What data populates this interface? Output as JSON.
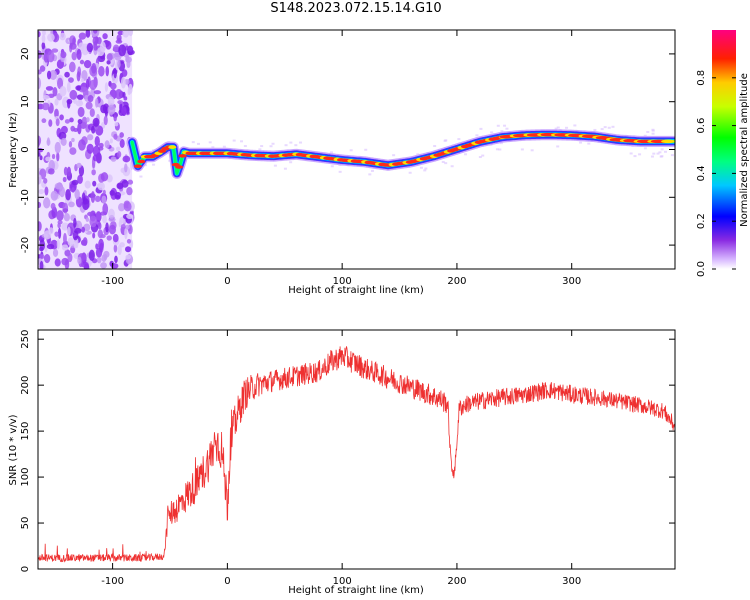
{
  "title": "S148.2023.072.15.14.G10",
  "colors": {
    "snr_line": "#ee3030",
    "colormap": [
      "#ffffff",
      "#8a2be2",
      "#0000ff",
      "#00ffff",
      "#00ff00",
      "#ffff00",
      "#ff0000",
      "#ff00aa"
    ]
  },
  "chart_data": [
    {
      "type": "heatmap",
      "title": "S148.2023.072.15.14.G10",
      "xlabel": "Height of straight line (km)",
      "ylabel": "Frequency (Hz)",
      "xlim": [
        -165,
        390
      ],
      "ylim": [
        -25,
        25
      ],
      "x_ticks": [
        -100,
        0,
        100,
        200,
        300
      ],
      "y_ticks": [
        -20,
        -10,
        0,
        10,
        20
      ],
      "noise_region_x": [
        -165,
        -83
      ],
      "ridge": {
        "x": [
          -83,
          -78,
          -72,
          -65,
          -58,
          -52,
          -47,
          -44,
          -41,
          -38,
          -33,
          -25,
          -10,
          0,
          20,
          40,
          60,
          80,
          100,
          120,
          140,
          160,
          180,
          200,
          220,
          240,
          260,
          280,
          300,
          320,
          340,
          360,
          390
        ],
        "y": [
          1.5,
          -3.5,
          -1.5,
          -1.5,
          -0.5,
          0.5,
          0.5,
          -5,
          -3,
          -0.5,
          -0.8,
          -0.8,
          -0.8,
          -0.8,
          -1.2,
          -1.4,
          -1.0,
          -1.6,
          -2.2,
          -2.6,
          -3.3,
          -2.6,
          -1.4,
          0.1,
          1.6,
          2.6,
          3.0,
          3.1,
          3.0,
          2.7,
          2.0,
          1.7,
          1.7
        ]
      },
      "colorbar": {
        "label": "Normalized spectral amplitude",
        "ticks": [
          0.0,
          0.2,
          0.4,
          0.6,
          0.8
        ],
        "range": [
          0,
          1
        ]
      }
    },
    {
      "type": "line",
      "xlabel": "Height of straight line (km)",
      "ylabel": "SNR (10 * v/v)",
      "xlim": [
        -165,
        390
      ],
      "ylim": [
        0,
        260
      ],
      "x_ticks": [
        -100,
        0,
        100,
        200,
        300
      ],
      "y_ticks": [
        0,
        50,
        100,
        150,
        200,
        250
      ],
      "series": [
        {
          "x": [
            -165,
            -150,
            -120,
            -90,
            -70,
            -55,
            -52,
            -50,
            -45,
            -35,
            -25,
            -15,
            -10,
            -5,
            0,
            3,
            8,
            15,
            25,
            40,
            60,
            80,
            90,
            100,
            110,
            120,
            140,
            160,
            180,
            192,
            195,
            198,
            202,
            210,
            230,
            260,
            280,
            300,
            330,
            360,
            380,
            390
          ],
          "y": [
            12,
            12,
            12,
            12,
            12,
            14,
            55,
            60,
            65,
            80,
            95,
            120,
            140,
            130,
            70,
            140,
            165,
            190,
            200,
            205,
            210,
            215,
            225,
            232,
            225,
            218,
            208,
            198,
            188,
            180,
            110,
            105,
            175,
            180,
            185,
            190,
            195,
            190,
            185,
            178,
            172,
            155
          ],
          "noise_amp": [
            4,
            4,
            4,
            4,
            4,
            4,
            14,
            14,
            16,
            18,
            20,
            22,
            24,
            24,
            24,
            22,
            20,
            18,
            14,
            12,
            12,
            12,
            13,
            13,
            13,
            12,
            12,
            12,
            12,
            12,
            8,
            8,
            10,
            10,
            10,
            10,
            10,
            10,
            9,
            9,
            9,
            9
          ]
        }
      ]
    }
  ]
}
